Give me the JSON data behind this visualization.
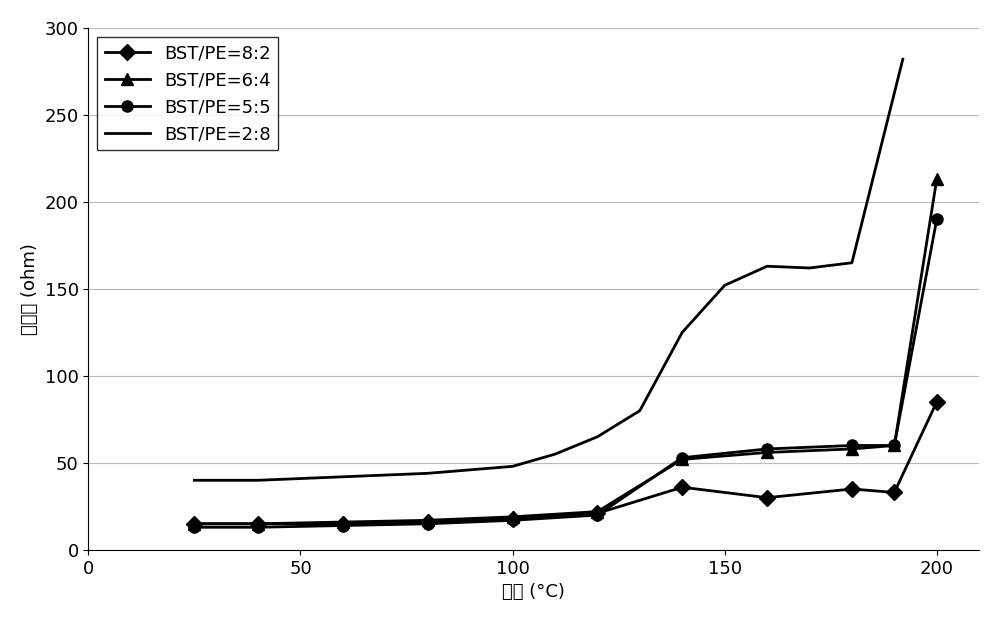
{
  "title": "",
  "xlabel": "温度 (°C)",
  "ylabel": "阻抗値 (ohm)",
  "xlim": [
    0,
    210
  ],
  "ylim": [
    0,
    300
  ],
  "xticks": [
    0,
    50,
    100,
    150,
    200
  ],
  "yticks": [
    0,
    50,
    100,
    150,
    200,
    250,
    300
  ],
  "series": [
    {
      "label": "BST/PE=8:2",
      "marker": "D",
      "x": [
        25,
        40,
        60,
        80,
        100,
        120,
        140,
        160,
        180,
        190,
        200
      ],
      "y": [
        15,
        15,
        15,
        16,
        18,
        21,
        36,
        30,
        35,
        33,
        85
      ]
    },
    {
      "label": "BST/PE=6:4",
      "marker": "^",
      "x": [
        25,
        40,
        60,
        80,
        100,
        120,
        140,
        160,
        180,
        190,
        200
      ],
      "y": [
        15,
        15,
        16,
        17,
        19,
        22,
        52,
        56,
        58,
        60,
        213
      ]
    },
    {
      "label": "BST/PE=5:5",
      "marker": "o",
      "x": [
        25,
        40,
        60,
        80,
        100,
        120,
        140,
        160,
        180,
        190,
        200
      ],
      "y": [
        13,
        13,
        14,
        15,
        17,
        20,
        53,
        58,
        60,
        60,
        190
      ]
    },
    {
      "label": "BST/PE=2:8",
      "marker": null,
      "x": [
        25,
        40,
        60,
        80,
        100,
        110,
        120,
        130,
        140,
        150,
        160,
        170,
        180,
        192
      ],
      "y": [
        40,
        40,
        42,
        44,
        48,
        55,
        65,
        80,
        125,
        152,
        163,
        162,
        165,
        282
      ]
    }
  ],
  "line_color": "#000000",
  "line_width": 2.0,
  "marker_size": 8,
  "bg_color": "#ffffff",
  "grid_color": "#bbbbbb",
  "legend_loc": "upper left",
  "font_size": 13,
  "figsize": [
    10.0,
    6.22
  ],
  "dpi": 100
}
